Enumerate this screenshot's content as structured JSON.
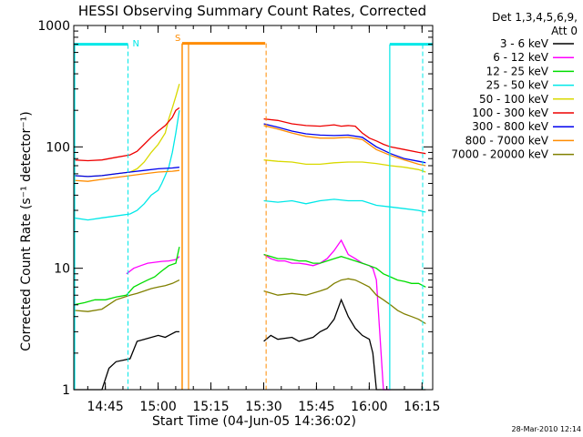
{
  "chart_data": {
    "type": "line",
    "title": "HESSI Observing Summary Count Rates, Corrected",
    "xlabel": "Start Time (04-Jun-05 14:36:02)",
    "ylabel": "Corrected Count Rate (s⁻¹ detector⁻¹)",
    "yscale": "log",
    "ylim": [
      1,
      1000
    ],
    "xlim_minutes_from_1436": [
      0,
      102
    ],
    "xticks": [
      {
        "label": "14:45",
        "minute": 8.97
      },
      {
        "label": "15:00",
        "minute": 23.97
      },
      {
        "label": "15:15",
        "minute": 38.97
      },
      {
        "label": "15:30",
        "minute": 53.97
      },
      {
        "label": "15:45",
        "minute": 68.97
      },
      {
        "label": "16:00",
        "minute": 83.97
      },
      {
        "label": "16:15",
        "minute": 98.97
      }
    ],
    "yticks": [
      {
        "label": "1",
        "value": 1
      },
      {
        "label": "10",
        "value": 10
      },
      {
        "label": "100",
        "value": 100
      },
      {
        "label": "1000",
        "value": 1000
      }
    ],
    "legend": {
      "header": [
        "Det 1,3,4,5,6,9,",
        "Att 0"
      ],
      "placement": "right"
    },
    "series": [
      {
        "name": "3 - 6 keV",
        "color": "#000000",
        "x": [
          0,
          5,
          8,
          10,
          12,
          16,
          18,
          20,
          24,
          26,
          27,
          29,
          30,
          54,
          56,
          58,
          62,
          64,
          66,
          68,
          70,
          72,
          74,
          76,
          78,
          80,
          82,
          84,
          85,
          86,
          88,
          90,
          92,
          94,
          96,
          98,
          100
        ],
        "y": [
          1,
          1,
          1,
          1.5,
          1.7,
          1.8,
          2.5,
          2.6,
          2.8,
          2.7,
          2.8,
          3,
          3,
          2.5,
          2.8,
          2.6,
          2.7,
          2.5,
          2.6,
          2.7,
          3,
          3.2,
          3.8,
          5.5,
          4,
          3.2,
          2.8,
          2.6,
          2,
          1,
          1,
          1,
          1,
          1,
          1,
          1,
          1
        ]
      },
      {
        "name": "6 - 12 keV",
        "color": "#ff00ff",
        "x": [
          15,
          17,
          19,
          21,
          23,
          25,
          27,
          29,
          30,
          54,
          56,
          58,
          60,
          62,
          64,
          66,
          68,
          70,
          72,
          74,
          76,
          78,
          80,
          82,
          84,
          85,
          86,
          88,
          90
        ],
        "y": [
          9,
          10,
          10.5,
          11,
          11.2,
          11.4,
          11.5,
          11.8,
          12.5,
          13,
          12,
          11.5,
          11.5,
          11,
          11,
          10.8,
          10.5,
          11,
          12,
          14,
          17,
          13,
          12,
          11,
          10.5,
          10,
          8,
          1,
          1
        ]
      },
      {
        "name": "12 - 25 keV",
        "color": "#00dd00",
        "x": [
          0,
          3,
          6,
          9,
          12,
          15,
          17,
          19,
          21,
          23,
          25,
          27,
          29,
          30,
          54,
          56,
          58,
          60,
          62,
          64,
          66,
          68,
          70,
          72,
          74,
          76,
          78,
          80,
          82,
          84,
          86,
          88,
          90,
          92,
          94,
          96,
          98,
          100
        ],
        "y": [
          5,
          5.2,
          5.5,
          5.5,
          5.8,
          6,
          7,
          7.5,
          8,
          8.5,
          9.5,
          10.5,
          11,
          15,
          13,
          12.5,
          12,
          12,
          11.8,
          11.5,
          11.5,
          11,
          11,
          11.5,
          12,
          12.5,
          12,
          11.5,
          11,
          10.5,
          10,
          9,
          8.5,
          8,
          7.8,
          7.5,
          7.5,
          7
        ]
      },
      {
        "name": "25 - 50 keV",
        "color": "#00e8e8",
        "x": [
          0,
          4,
          8,
          12,
          16,
          18,
          20,
          22,
          24,
          25,
          26,
          27,
          28,
          29,
          30,
          54,
          58,
          62,
          66,
          70,
          74,
          78,
          82,
          86,
          90,
          94,
          98,
          100
        ],
        "y": [
          26,
          25,
          26,
          27,
          28,
          30,
          34,
          40,
          44,
          50,
          58,
          68,
          90,
          130,
          200,
          36,
          35,
          36,
          34,
          36,
          37,
          36,
          36,
          33,
          32,
          31,
          30,
          29
        ]
      },
      {
        "name": "50 - 100 keV",
        "color": "#d9d900",
        "x": [
          0,
          4,
          8,
          12,
          16,
          18,
          20,
          22,
          24,
          26,
          27,
          28,
          29,
          30,
          54,
          58,
          62,
          66,
          70,
          74,
          78,
          82,
          86,
          90,
          94,
          98,
          100
        ],
        "y": [
          58,
          57,
          58,
          60,
          62,
          66,
          75,
          90,
          105,
          130,
          170,
          210,
          260,
          330,
          78,
          76,
          75,
          72,
          72,
          74,
          75,
          75,
          73,
          70,
          68,
          65,
          62
        ]
      },
      {
        "name": "100 - 300 keV",
        "color": "#ee0000",
        "x": [
          0,
          4,
          8,
          12,
          16,
          18,
          20,
          22,
          24,
          26,
          28,
          29,
          30,
          54,
          58,
          62,
          66,
          70,
          72,
          74,
          76,
          78,
          80,
          82,
          84,
          86,
          88,
          90,
          94,
          98,
          100
        ],
        "y": [
          78,
          77,
          78,
          82,
          86,
          92,
          105,
          120,
          135,
          150,
          175,
          200,
          210,
          170,
          165,
          155,
          150,
          148,
          150,
          152,
          148,
          150,
          148,
          130,
          118,
          112,
          105,
          100,
          95,
          90,
          88
        ]
      },
      {
        "name": "300 - 800 keV",
        "color": "#0000ee",
        "x": [
          0,
          4,
          8,
          12,
          16,
          20,
          24,
          28,
          30,
          54,
          58,
          62,
          66,
          70,
          74,
          78,
          82,
          86,
          90,
          94,
          98,
          100
        ],
        "y": [
          58,
          57,
          58,
          60,
          62,
          64,
          66,
          67,
          68,
          155,
          145,
          135,
          128,
          125,
          124,
          125,
          120,
          100,
          88,
          80,
          76,
          74
        ]
      },
      {
        "name": "800 - 7000 keV",
        "color": "#ff8c00",
        "x": [
          0,
          4,
          8,
          12,
          16,
          20,
          24,
          28,
          30,
          54,
          58,
          62,
          66,
          70,
          74,
          78,
          82,
          86,
          90,
          94,
          98,
          100
        ],
        "y": [
          53,
          52,
          54,
          56,
          58,
          60,
          62,
          63,
          64,
          150,
          140,
          130,
          122,
          118,
          118,
          120,
          115,
          95,
          85,
          78,
          72,
          70
        ]
      },
      {
        "name": "7000 - 20000 keV",
        "color": "#808000",
        "x": [
          0,
          4,
          8,
          12,
          16,
          18,
          20,
          22,
          24,
          26,
          28,
          30,
          54,
          58,
          62,
          66,
          70,
          72,
          74,
          76,
          78,
          80,
          82,
          84,
          86,
          88,
          90,
          92,
          94,
          96,
          98,
          100
        ],
        "y": [
          4.5,
          4.4,
          4.6,
          5.5,
          6,
          6.2,
          6.5,
          6.8,
          7,
          7.2,
          7.5,
          8,
          6.5,
          6,
          6.2,
          6,
          6.5,
          6.8,
          7.5,
          8,
          8.2,
          8,
          7.5,
          7,
          6,
          5.5,
          5,
          4.5,
          4.2,
          4,
          3.8,
          3.5
        ]
      }
    ],
    "annotations": [
      {
        "text": "N",
        "color": "#00e8e8"
      },
      {
        "text": "S",
        "color": "#ff8c00"
      }
    ],
    "markers": {
      "night_color": "#00e8e8",
      "saa_color": "#ff8c00",
      "night_intervals": [
        [
          0,
          15.4
        ],
        [
          89.8,
          102
        ]
      ],
      "saa_interval": [
        30.8,
        54.4
      ],
      "marker_level": 700
    },
    "footer_date": "28-Mar-2010 12:14"
  }
}
